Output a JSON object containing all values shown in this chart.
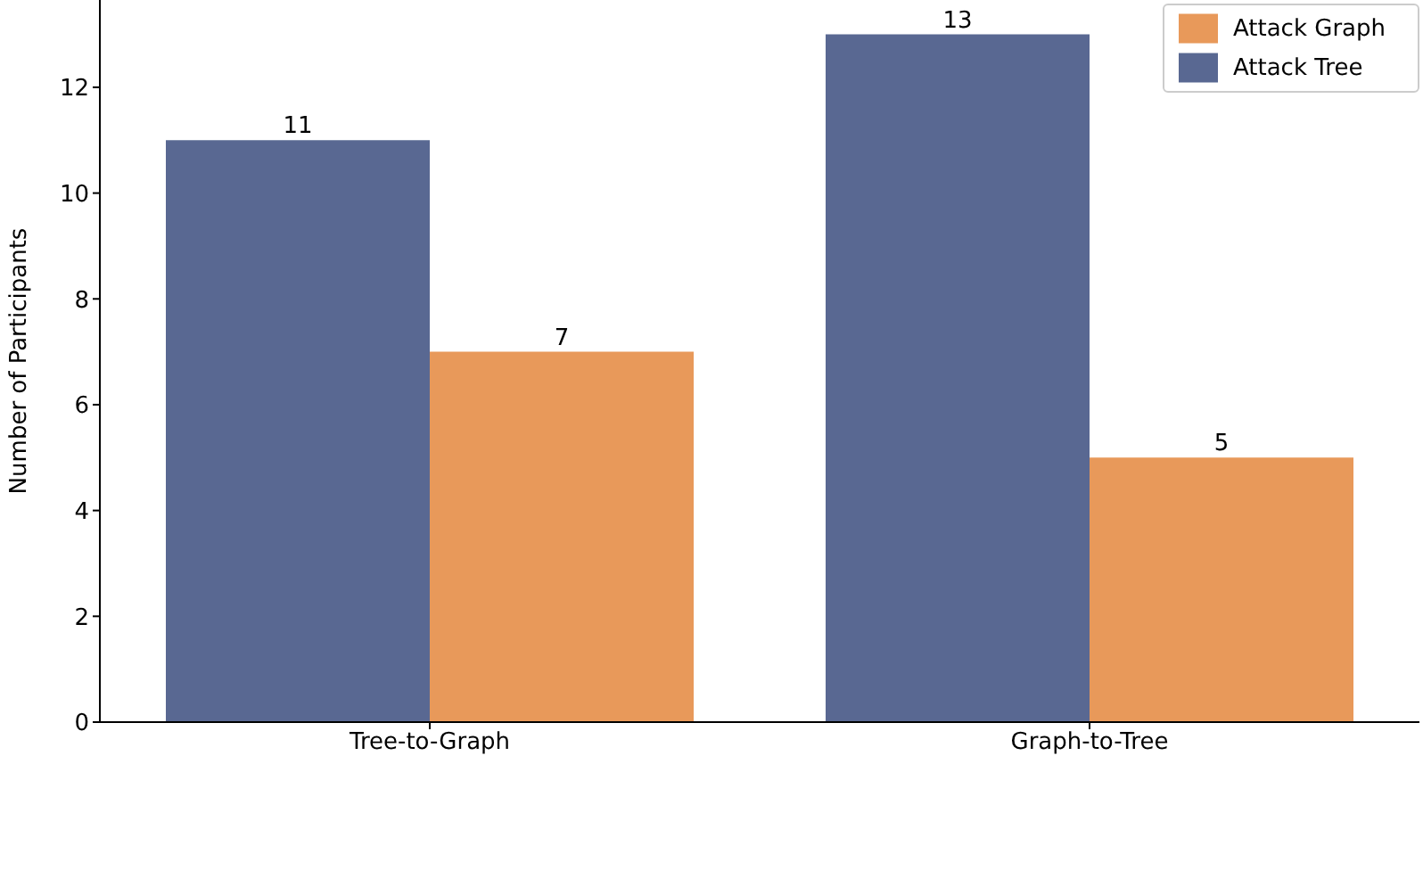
{
  "chart_data": {
    "type": "bar",
    "ylabel": "Number of Participants",
    "categories": [
      "Tree-to-Graph",
      "Graph-to-Tree"
    ],
    "series": [
      {
        "name": "Attack Tree",
        "color": "#596892",
        "values": [
          11,
          13
        ]
      },
      {
        "name": "Attack Graph",
        "color": "#e8995a",
        "values": [
          7,
          5
        ]
      }
    ],
    "ylim": [
      0,
      13.65
    ],
    "yticks": [
      0,
      2,
      4,
      6,
      8,
      10,
      12
    ],
    "data_labels": true,
    "legend": "top right",
    "grid": false
  }
}
